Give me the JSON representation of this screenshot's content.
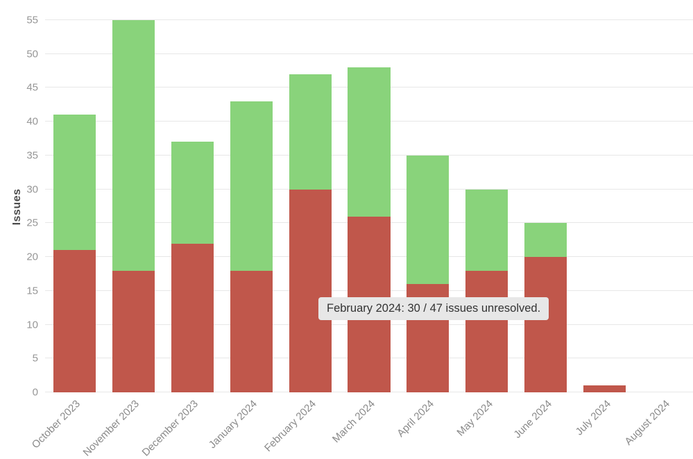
{
  "chart_data": {
    "type": "bar",
    "stacked": true,
    "title": "",
    "xlabel": "",
    "ylabel": "Issues",
    "ylim": [
      0,
      55
    ],
    "ytick_step": 5,
    "grid": true,
    "legend": false,
    "categories": [
      "October 2023",
      "November 2023",
      "December 2023",
      "January 2024",
      "February 2024",
      "March 2024",
      "April 2024",
      "May 2024",
      "June 2024",
      "July 2024",
      "August 2024"
    ],
    "series": [
      {
        "name": "unresolved",
        "color": "#c0574b",
        "values": [
          21,
          18,
          22,
          18,
          30,
          26,
          16,
          18,
          20,
          1,
          0
        ]
      },
      {
        "name": "resolved",
        "color": "#89d37b",
        "values": [
          20,
          37,
          15,
          25,
          17,
          22,
          19,
          12,
          5,
          0,
          0
        ]
      }
    ],
    "totals": [
      41,
      55,
      37,
      43,
      47,
      48,
      35,
      30,
      25,
      1,
      0
    ],
    "tooltip": {
      "text": "February 2024: 30 / 47 issues unresolved."
    }
  },
  "colors": {
    "unresolved_bar": "#c0574b",
    "resolved_bar": "#89d37b",
    "gridline": "#e7e7e7",
    "tick_text": "#969696",
    "axis_title_text": "#4d4d4d",
    "tooltip_bg": "#e7e7e7",
    "tooltip_text": "#333333"
  }
}
